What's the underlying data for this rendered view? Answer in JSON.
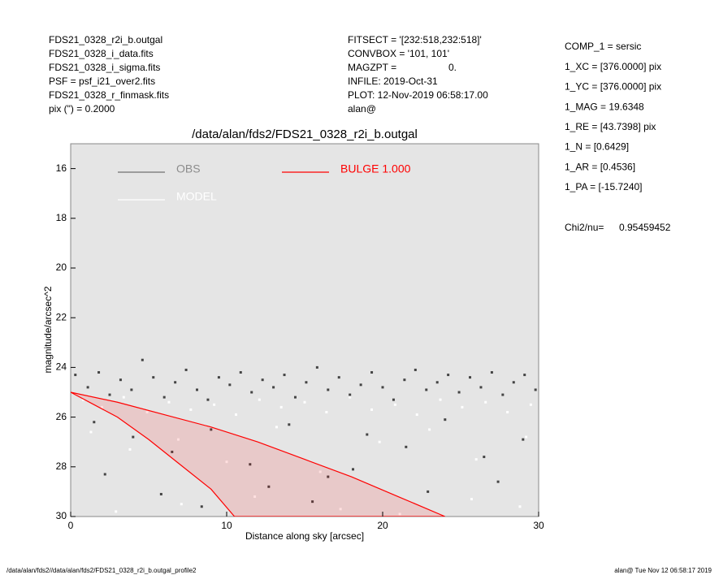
{
  "header": {
    "left": [
      "FDS21_0328_r2i_b.outgal",
      "FDS21_0328_i_data.fits",
      "FDS21_0328_i_sigma.fits",
      "PSF    = psf_i21_over2.fits",
      "FDS21_0328_r_finmask.fits",
      "pix (\") =  0.2000"
    ],
    "middle": [
      "FITSECT = '[232:518,232:518]'",
      "CONVBOX = '101, 101'",
      "MAGZPT  =",
      "INFILE: 2019-Oct-31",
      "PLOT: 12-Nov-2019 06:58:17.00",
      "alan@"
    ],
    "magzpt_value": "0.",
    "right": [
      "COMP_1  = sersic",
      "1_XC    = [376.0000] pix",
      "1_YC    = [376.0000] pix",
      "1_MAG   = 19.6348",
      "1_RE    = [43.7398] pix",
      "1_N     = [0.6429]",
      "1_AR    = [0.4536]",
      "1_PA    = [-15.7240]"
    ],
    "chi_label": "Chi2/nu=",
    "chi_value": "0.95459452"
  },
  "footer": {
    "left": "/data/alan/fds2//data/alan/fds2/FDS21_0328_r2i_b.outgal_profile2",
    "right": "alan@  Tue Nov 12 06:58:17 2019"
  },
  "chart_data": {
    "type": "scatter",
    "title": "/data/alan/fds2/FDS21_0328_r2i_b.outgal",
    "xlabel": "Distance along sky [arcsec]",
    "ylabel": "magnitude/arcsec^2",
    "xlim": [
      0,
      30
    ],
    "ylim": [
      30,
      15
    ],
    "xticks": [
      0,
      10,
      20,
      30
    ],
    "yticks": [
      16,
      18,
      20,
      22,
      24,
      26,
      28,
      30
    ],
    "grid": false,
    "background": "#e5e5e5",
    "series": [
      {
        "name": "OBS",
        "color": "#444444",
        "kind": "points",
        "x": [
          0.3,
          1.1,
          1.8,
          2.5,
          3.2,
          3.9,
          4.6,
          5.3,
          6.0,
          6.7,
          7.4,
          8.1,
          8.8,
          9.5,
          10.2,
          10.9,
          11.6,
          12.3,
          13.0,
          13.7,
          14.4,
          15.1,
          15.8,
          16.5,
          17.2,
          17.9,
          18.6,
          19.3,
          20.0,
          20.7,
          21.4,
          22.1,
          22.8,
          23.5,
          24.2,
          24.9,
          25.6,
          26.3,
          27.0,
          27.7,
          28.4,
          29.1,
          29.8,
          1.5,
          4.0,
          6.5,
          9.0,
          11.5,
          14.0,
          16.5,
          19.0,
          21.5,
          24.0,
          26.5,
          29.0,
          2.2,
          5.8,
          8.4,
          12.7,
          15.5,
          18.1,
          22.9,
          27.4
        ],
        "values": [
          24.3,
          24.8,
          24.2,
          25.1,
          24.5,
          24.9,
          23.7,
          24.4,
          25.2,
          24.6,
          24.1,
          24.9,
          25.3,
          24.4,
          24.7,
          24.2,
          25.0,
          24.5,
          24.8,
          24.3,
          25.2,
          24.6,
          24.0,
          24.9,
          24.4,
          25.1,
          24.7,
          24.2,
          24.8,
          25.3,
          24.5,
          24.1,
          24.9,
          24.6,
          24.3,
          25.0,
          24.4,
          24.8,
          24.2,
          25.1,
          24.6,
          24.3,
          24.9,
          26.2,
          26.8,
          27.4,
          26.5,
          27.9,
          26.3,
          28.4,
          26.7,
          27.2,
          26.1,
          27.6,
          26.9,
          28.3,
          29.1,
          29.6,
          28.8,
          29.4,
          28.1,
          29.0,
          28.6
        ]
      },
      {
        "name": "MODEL",
        "color": "#ffffff",
        "kind": "points",
        "x": [
          0.8,
          2.0,
          3.4,
          4.9,
          6.3,
          7.7,
          9.2,
          10.6,
          12.1,
          13.5,
          15.0,
          16.4,
          17.9,
          19.3,
          20.8,
          22.2,
          23.7,
          25.1,
          26.6,
          28.0,
          29.5,
          1.3,
          3.8,
          6.9,
          10.0,
          13.2,
          16.0,
          19.8,
          23.0,
          26.0,
          29.2,
          2.9,
          7.1,
          11.8,
          17.3,
          21.1,
          25.7,
          28.8
        ],
        "values": [
          25.3,
          25.6,
          25.2,
          25.8,
          25.4,
          25.7,
          25.5,
          25.9,
          25.3,
          25.6,
          25.4,
          25.8,
          25.2,
          25.7,
          25.5,
          25.9,
          25.3,
          25.6,
          25.4,
          25.8,
          25.5,
          26.6,
          27.3,
          26.9,
          27.8,
          26.4,
          28.2,
          27.0,
          26.5,
          27.7,
          26.8,
          29.8,
          29.5,
          29.2,
          29.7,
          29.9,
          29.3,
          29.6
        ]
      },
      {
        "name": "BULGE  1.000",
        "color": "#ff0000",
        "kind": "outline",
        "x": [
          0,
          3,
          6,
          9,
          12,
          15,
          18,
          21,
          24,
          10.5,
          9,
          7,
          5,
          3,
          1.5,
          0
        ],
        "values": [
          25,
          25.4,
          25.9,
          26.4,
          27.0,
          27.7,
          28.4,
          29.2,
          30,
          30,
          28.9,
          27.9,
          26.9,
          26.0,
          25.5,
          25
        ]
      }
    ]
  }
}
